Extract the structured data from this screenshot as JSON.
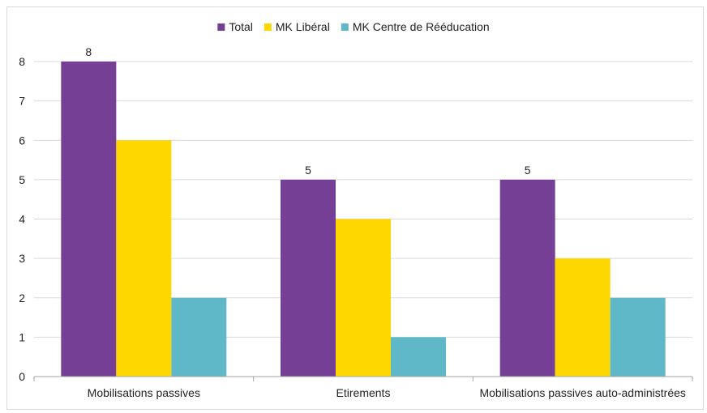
{
  "chart_data": {
    "type": "bar",
    "categories": [
      "Mobilisations passives",
      "Etirements",
      "Mobilisations passives auto-administrées"
    ],
    "series": [
      {
        "name": "Total",
        "values": [
          8,
          5,
          5
        ],
        "color": "#763f96",
        "show_labels": true
      },
      {
        "name": "MK Libéral",
        "values": [
          6,
          4,
          3
        ],
        "color": "#ffd700",
        "show_labels": false
      },
      {
        "name": "MK Centre de Rééducation",
        "values": [
          2,
          1,
          2
        ],
        "color": "#5fb8c8",
        "show_labels": false
      }
    ],
    "ylim": [
      0,
      8
    ],
    "yticks": [
      0,
      1,
      2,
      3,
      4,
      5,
      6,
      7,
      8
    ],
    "grid": true,
    "legend_position": "top"
  }
}
